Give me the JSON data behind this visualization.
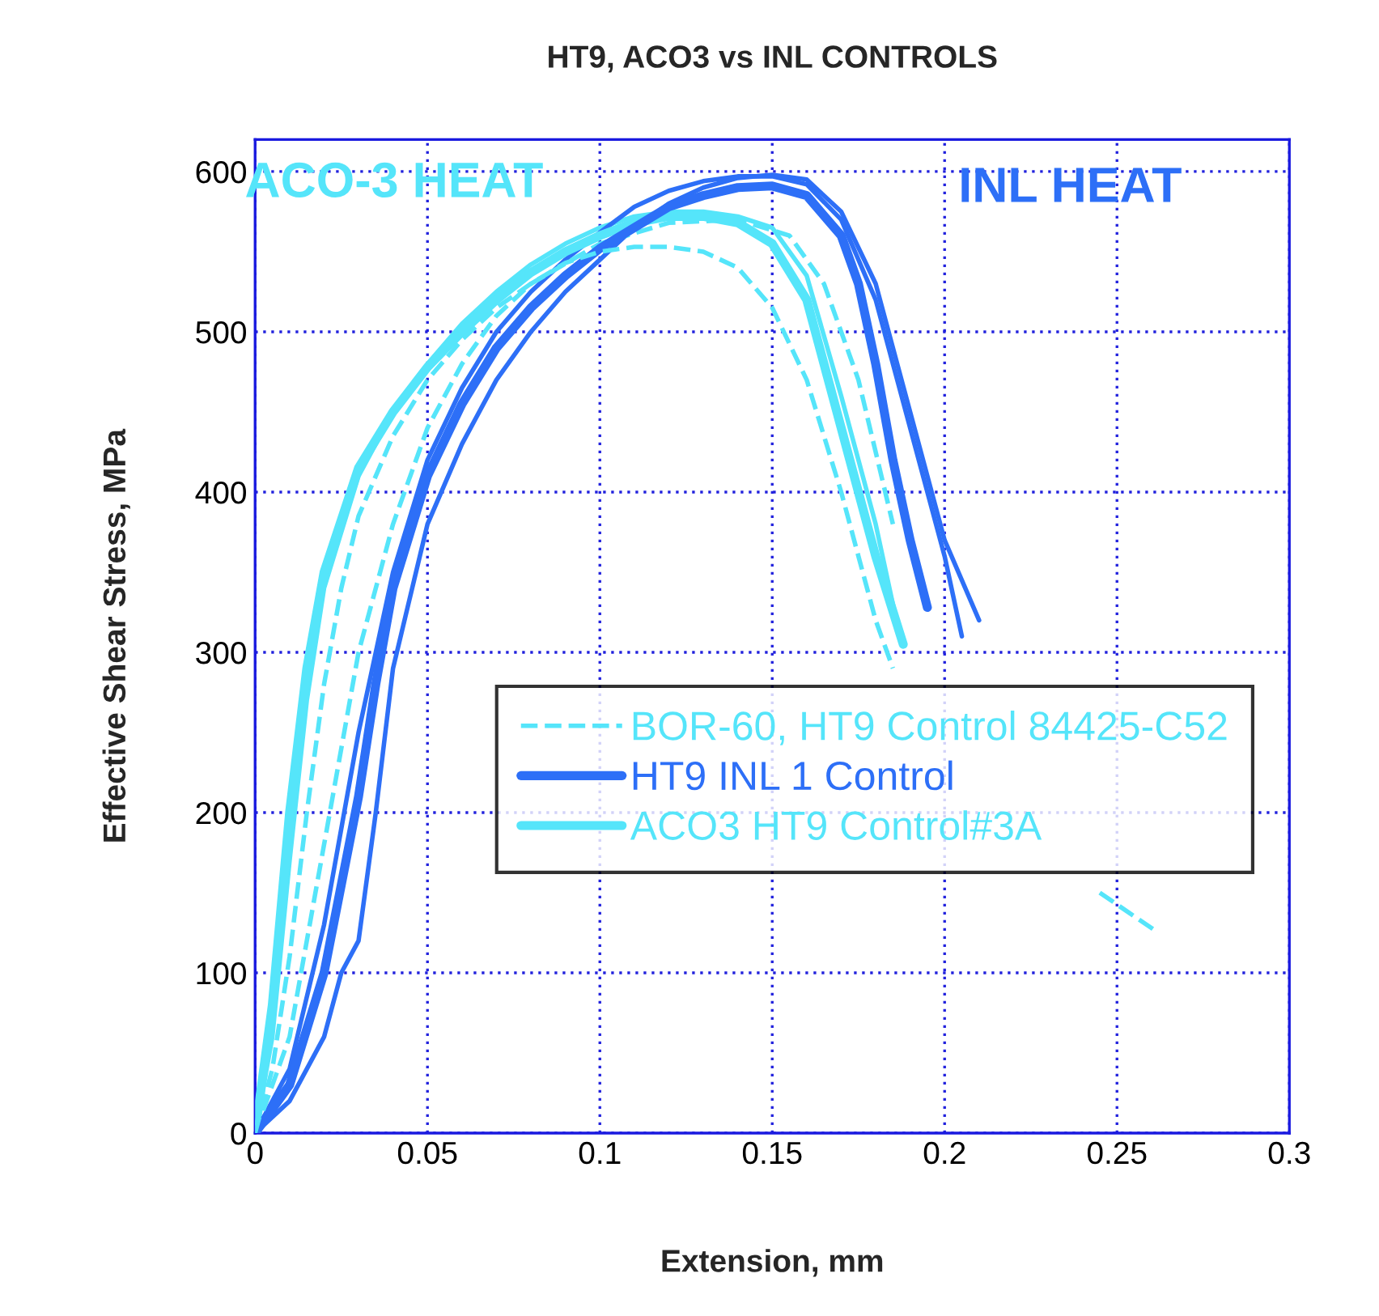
{
  "chart_data": {
    "type": "line",
    "title": "HT9, ACO3 vs INL CONTROLS",
    "xlabel": "Extension, mm",
    "ylabel": "Effective Shear Stress, MPa",
    "xlim": [
      0,
      0.3
    ],
    "ylim": [
      0,
      620
    ],
    "xticks": [
      0,
      0.05,
      0.1,
      0.15,
      0.2,
      0.25,
      0.3
    ],
    "yticks": [
      0,
      100,
      200,
      300,
      400,
      500,
      600
    ],
    "grid": true,
    "legend": "right",
    "marker": "none",
    "annotations": [
      "ACO-3 HEAT",
      "INL HEAT"
    ],
    "series": [
      {
        "name": "BOR-60, HT9 Control 84425-C52",
        "color": "#55e5fa",
        "line_style": "dashed",
        "x": [
          0,
          0.005,
          0.01,
          0.015,
          0.02,
          0.025,
          0.03,
          0.04,
          0.05,
          0.06,
          0.07,
          0.08,
          0.09,
          0.1,
          0.11,
          0.12,
          0.13,
          0.14,
          0.15,
          0.16,
          0.17,
          0.175,
          0.18,
          0.185,
          0.215,
          0.245,
          0.262
        ],
        "values": [
          0,
          40,
          110,
          200,
          280,
          340,
          385,
          435,
          470,
          495,
          515,
          530,
          543,
          550,
          553,
          553,
          550,
          540,
          515,
          470,
          400,
          360,
          320,
          290,
          null,
          150,
          125
        ]
      },
      {
        "name": "HT9 INL 1 Control",
        "color": "#2d6ff7",
        "line_style": "solid",
        "x": [
          0,
          0.01,
          0.02,
          0.03,
          0.035,
          0.04,
          0.05,
          0.06,
          0.07,
          0.08,
          0.09,
          0.1,
          0.11,
          0.12,
          0.13,
          0.14,
          0.15,
          0.16,
          0.17,
          0.175,
          0.18,
          0.185,
          0.19,
          0.195
        ],
        "values": [
          0,
          30,
          100,
          210,
          280,
          340,
          410,
          455,
          490,
          515,
          535,
          552,
          565,
          578,
          585,
          590,
          591,
          585,
          560,
          530,
          480,
          420,
          370,
          328
        ]
      },
      {
        "name": "ACO3 HT9 Control#3A",
        "color": "#55e5fa",
        "line_style": "solid",
        "x": [
          0,
          0.005,
          0.01,
          0.015,
          0.02,
          0.03,
          0.04,
          0.05,
          0.06,
          0.07,
          0.08,
          0.09,
          0.1,
          0.11,
          0.12,
          0.13,
          0.14,
          0.15,
          0.16,
          0.165,
          0.17,
          0.175,
          0.18,
          0.188
        ],
        "values": [
          0,
          80,
          200,
          290,
          350,
          415,
          450,
          478,
          500,
          520,
          537,
          550,
          560,
          568,
          572,
          572,
          568,
          555,
          520,
          480,
          440,
          400,
          360,
          305
        ]
      },
      {
        "color": "#55e5fa",
        "line_style": "dashed",
        "x": [
          0,
          0.01,
          0.02,
          0.03,
          0.04,
          0.05,
          0.06,
          0.07,
          0.08,
          0.1,
          0.12,
          0.14,
          0.155,
          0.165,
          0.175,
          0.185
        ],
        "values": [
          0,
          60,
          180,
          300,
          380,
          440,
          480,
          510,
          530,
          555,
          568,
          570,
          560,
          530,
          470,
          380
        ]
      },
      {
        "color": "#2d6ff7",
        "line_style": "solid",
        "x": [
          0,
          0.01,
          0.02,
          0.025,
          0.03,
          0.035,
          0.04,
          0.05,
          0.06,
          0.07,
          0.08,
          0.09,
          0.1,
          0.11,
          0.12,
          0.13,
          0.14,
          0.15,
          0.16,
          0.17,
          0.18,
          0.19,
          0.2,
          0.21
        ],
        "values": [
          0,
          20,
          60,
          100,
          120,
          200,
          290,
          380,
          430,
          470,
          500,
          525,
          545,
          565,
          580,
          590,
          596,
          598,
          595,
          575,
          530,
          450,
          370,
          320
        ]
      },
      {
        "color": "#2d6ff7",
        "line_style": "solid",
        "x": [
          0,
          0.01,
          0.02,
          0.03,
          0.04,
          0.05,
          0.06,
          0.07,
          0.08,
          0.09,
          0.1,
          0.11,
          0.12,
          0.13,
          0.14,
          0.15,
          0.16,
          0.17,
          0.18,
          0.19,
          0.2,
          0.205
        ],
        "values": [
          0,
          40,
          130,
          250,
          350,
          420,
          465,
          500,
          525,
          545,
          562,
          578,
          588,
          594,
          597,
          597,
          592,
          570,
          520,
          440,
          360,
          310
        ]
      },
      {
        "color": "#55e5fa",
        "line_style": "solid",
        "x": [
          0,
          0.005,
          0.01,
          0.015,
          0.02,
          0.03,
          0.04,
          0.05,
          0.06,
          0.07,
          0.08,
          0.09,
          0.1,
          0.11,
          0.12,
          0.13,
          0.14,
          0.15,
          0.16,
          0.17,
          0.18,
          0.186
        ],
        "values": [
          0,
          60,
          170,
          270,
          340,
          410,
          450,
          480,
          505,
          525,
          542,
          555,
          565,
          572,
          575,
          575,
          572,
          565,
          535,
          460,
          380,
          320
        ]
      }
    ]
  }
}
